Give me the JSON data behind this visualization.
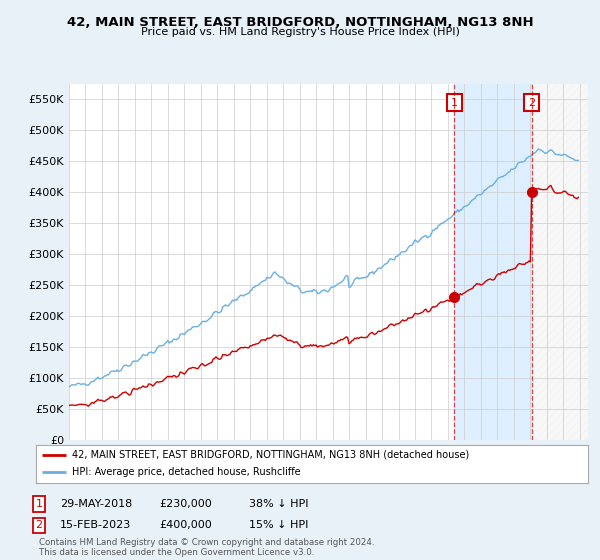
{
  "title": "42, MAIN STREET, EAST BRIDGFORD, NOTTINGHAM, NG13 8NH",
  "subtitle": "Price paid vs. HM Land Registry's House Price Index (HPI)",
  "ylim": [
    0,
    575000
  ],
  "yticks": [
    0,
    50000,
    100000,
    150000,
    200000,
    250000,
    300000,
    350000,
    400000,
    450000,
    500000,
    550000
  ],
  "ytick_labels": [
    "£0",
    "£50K",
    "£100K",
    "£150K",
    "£200K",
    "£250K",
    "£300K",
    "£350K",
    "£400K",
    "£450K",
    "£500K",
    "£550K"
  ],
  "hpi_color": "#6ab0de",
  "price_color": "#cc0000",
  "sale1_t": 2018.375,
  "sale1_price": 230000,
  "sale2_t": 2023.083,
  "sale2_price": 400000,
  "legend_line1": "42, MAIN STREET, EAST BRIDGFORD, NOTTINGHAM, NG13 8NH (detached house)",
  "legend_line2": "HPI: Average price, detached house, Rushcliffe",
  "ann1_date": "29-MAY-2018",
  "ann1_price": "£230,000",
  "ann1_pct": "38% ↓ HPI",
  "ann2_date": "15-FEB-2023",
  "ann2_price": "£400,000",
  "ann2_pct": "15% ↓ HPI",
  "footer": "Contains HM Land Registry data © Crown copyright and database right 2024.\nThis data is licensed under the Open Government Licence v3.0.",
  "background_color": "#e8f0f8",
  "plot_bg_color": "#ffffff",
  "grid_color": "#cccccc",
  "shade_color": "#ddeeff",
  "hatch_color": "#cccccc"
}
